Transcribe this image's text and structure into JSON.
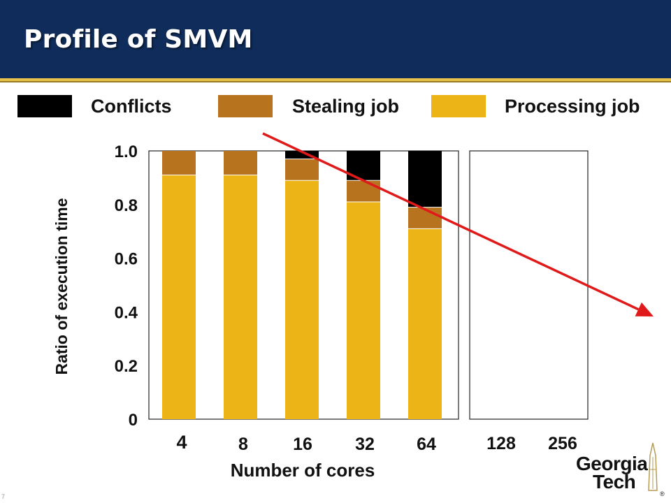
{
  "slide": {
    "title": "Profile of SMVM",
    "number": "7"
  },
  "legend": [
    {
      "label": "Conflicts",
      "color": "#000000"
    },
    {
      "label": "Stealing job",
      "color": "#b8731e"
    },
    {
      "label": "Processing job",
      "color": "#ecb417"
    }
  ],
  "logo": {
    "line1": "Georgia",
    "line2": "Tech",
    "mark": "®"
  },
  "colors": {
    "header": "#0f2c5a",
    "accent": "#e8c24a",
    "arrow": "#e01a1a"
  },
  "chart_data": {
    "type": "bar",
    "stacked": true,
    "categories": [
      "4",
      "8",
      "16",
      "32",
      "64",
      "128",
      "256"
    ],
    "series": [
      {
        "name": "Processing job",
        "values": [
          0.91,
          0.91,
          0.89,
          0.81,
          0.71,
          null,
          null
        ]
      },
      {
        "name": "Stealing job",
        "values": [
          0.09,
          0.09,
          0.08,
          0.08,
          0.08,
          null,
          null
        ]
      },
      {
        "name": "Conflicts",
        "values": [
          0.0,
          0.0,
          0.03,
          0.11,
          0.21,
          null,
          null
        ]
      }
    ],
    "ylabel": "Ratio of execution time",
    "xlabel": "Number of cores",
    "yticks": [
      "0",
      "0.2",
      "0.4",
      "0.6",
      "0.8",
      "1.0"
    ],
    "ylim": [
      0,
      1.0
    ],
    "grid": false,
    "legend_position": "top",
    "annotation": "red downward-trend arrow"
  }
}
